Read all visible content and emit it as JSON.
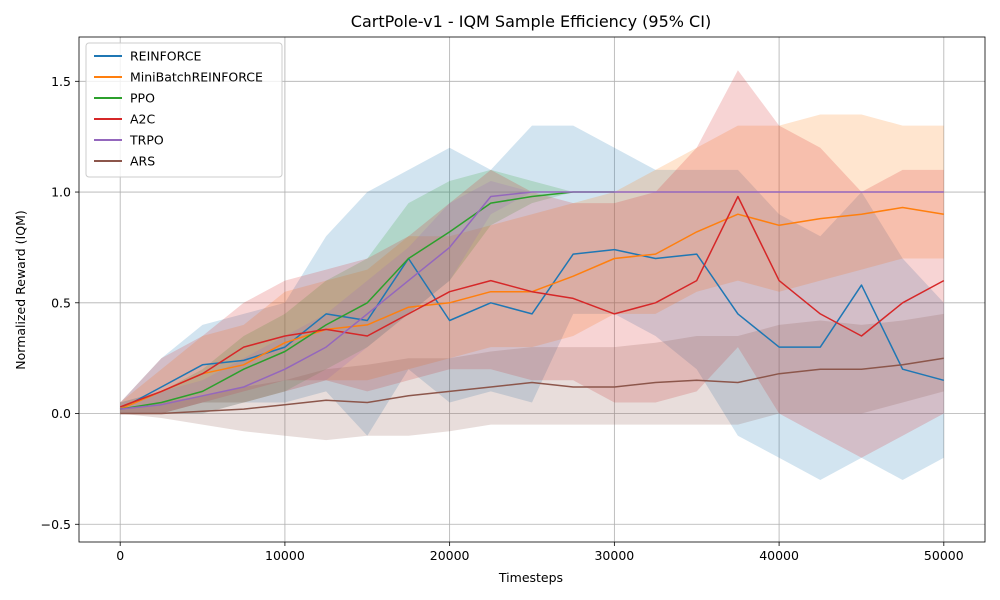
{
  "chart_data": {
    "type": "line",
    "title": "CartPole-v1 - IQM Sample Efficiency (95% CI)",
    "xlabel": "Timesteps",
    "ylabel": "Normalized Reward (IQM)",
    "xlim": [
      -2500,
      52500
    ],
    "ylim": [
      -0.58,
      1.7
    ],
    "xticks": [
      0,
      10000,
      20000,
      30000,
      40000,
      50000
    ],
    "xtick_labels": [
      "0",
      "10000",
      "20000",
      "30000",
      "40000",
      "50000"
    ],
    "yticks": [
      -0.5,
      0.0,
      0.5,
      1.0,
      1.5
    ],
    "ytick_labels": [
      "−0.5",
      "0.0",
      "0.5",
      "1.0",
      "1.5"
    ],
    "grid": true,
    "legend_position": "top-left",
    "series": [
      {
        "name": "REINFORCE",
        "color": "#1f77b4",
        "x": [
          0,
          2500,
          5000,
          7500,
          10000,
          12500,
          15000,
          17500,
          20000,
          22500,
          25000,
          27500,
          30000,
          32500,
          35000,
          37500,
          40000,
          42500,
          45000,
          47500,
          50000
        ],
        "y": [
          0.02,
          0.12,
          0.22,
          0.24,
          0.3,
          0.45,
          0.42,
          0.7,
          0.42,
          0.5,
          0.45,
          0.72,
          0.74,
          0.7,
          0.72,
          0.45,
          0.3,
          0.3,
          0.58,
          0.2,
          0.15
        ],
        "ci_low": [
          0.0,
          0.0,
          0.05,
          0.05,
          0.05,
          0.1,
          -0.1,
          0.2,
          0.05,
          0.1,
          0.05,
          0.45,
          0.45,
          0.35,
          0.2,
          -0.1,
          -0.2,
          -0.3,
          -0.2,
          -0.3,
          -0.2
        ],
        "ci_high": [
          0.05,
          0.25,
          0.4,
          0.45,
          0.5,
          0.8,
          1.0,
          1.1,
          1.2,
          1.1,
          1.3,
          1.3,
          1.2,
          1.1,
          1.1,
          1.1,
          0.9,
          0.8,
          1.0,
          0.7,
          0.5
        ]
      },
      {
        "name": "MiniBatchREINFORCE",
        "color": "#ff7f0e",
        "x": [
          0,
          2500,
          5000,
          7500,
          10000,
          12500,
          15000,
          17500,
          20000,
          22500,
          25000,
          27500,
          30000,
          32500,
          35000,
          37500,
          40000,
          42500,
          45000,
          47500,
          50000
        ],
        "y": [
          0.02,
          0.1,
          0.18,
          0.22,
          0.32,
          0.38,
          0.4,
          0.48,
          0.5,
          0.55,
          0.55,
          0.62,
          0.7,
          0.72,
          0.82,
          0.9,
          0.85,
          0.88,
          0.9,
          0.93,
          0.9
        ],
        "ci_low": [
          0.0,
          0.0,
          0.05,
          0.05,
          0.1,
          0.15,
          0.15,
          0.2,
          0.25,
          0.3,
          0.3,
          0.35,
          0.45,
          0.45,
          0.55,
          0.6,
          0.55,
          0.6,
          0.65,
          0.7,
          0.7
        ],
        "ci_high": [
          0.05,
          0.2,
          0.35,
          0.4,
          0.55,
          0.6,
          0.65,
          0.8,
          0.8,
          0.85,
          0.9,
          0.95,
          1.0,
          1.1,
          1.2,
          1.3,
          1.3,
          1.35,
          1.35,
          1.3,
          1.3
        ]
      },
      {
        "name": "PPO",
        "color": "#2ca02c",
        "x": [
          0,
          2500,
          5000,
          7500,
          10000,
          12500,
          15000,
          17500,
          20000,
          22500,
          25000,
          27500,
          30000
        ],
        "y": [
          0.02,
          0.05,
          0.1,
          0.2,
          0.28,
          0.4,
          0.5,
          0.7,
          0.82,
          0.95,
          0.98,
          1.0,
          1.0
        ],
        "ci_low": [
          0.0,
          0.0,
          0.0,
          0.05,
          0.1,
          0.2,
          0.3,
          0.45,
          0.6,
          0.85,
          0.95,
          1.0,
          1.0
        ],
        "ci_high": [
          0.05,
          0.1,
          0.2,
          0.35,
          0.45,
          0.6,
          0.7,
          0.95,
          1.05,
          1.1,
          1.05,
          1.0,
          1.0
        ]
      },
      {
        "name": "A2C",
        "color": "#d62728",
        "x": [
          0,
          2500,
          5000,
          7500,
          10000,
          12500,
          15000,
          17500,
          20000,
          22500,
          25000,
          27500,
          30000,
          32500,
          35000,
          37500,
          40000,
          42500,
          45000,
          47500,
          50000
        ],
        "y": [
          0.03,
          0.1,
          0.18,
          0.3,
          0.35,
          0.38,
          0.35,
          0.45,
          0.55,
          0.6,
          0.55,
          0.52,
          0.45,
          0.5,
          0.6,
          0.98,
          0.6,
          0.45,
          0.35,
          0.5,
          0.6
        ],
        "ci_low": [
          0.0,
          0.0,
          0.05,
          0.1,
          0.15,
          0.15,
          0.1,
          0.15,
          0.2,
          0.2,
          0.15,
          0.15,
          0.05,
          0.05,
          0.1,
          0.3,
          0.0,
          -0.1,
          -0.2,
          -0.1,
          0.0
        ],
        "ci_high": [
          0.05,
          0.25,
          0.35,
          0.5,
          0.6,
          0.65,
          0.7,
          0.8,
          0.95,
          1.1,
          1.0,
          0.95,
          0.95,
          1.0,
          1.2,
          1.55,
          1.3,
          1.2,
          1.0,
          1.1,
          1.1
        ]
      },
      {
        "name": "TRPO",
        "color": "#9467bd",
        "x": [
          0,
          2500,
          5000,
          7500,
          10000,
          12500,
          15000,
          17500,
          20000,
          22500,
          25000,
          27500,
          30000,
          32500,
          35000,
          37500,
          40000,
          42500,
          45000,
          47500,
          50000
        ],
        "y": [
          0.02,
          0.04,
          0.08,
          0.12,
          0.2,
          0.3,
          0.45,
          0.6,
          0.75,
          0.98,
          1.0,
          1.0,
          1.0,
          1.0,
          1.0,
          1.0,
          1.0,
          1.0,
          1.0,
          1.0,
          1.0
        ],
        "ci_low": [
          0.0,
          0.0,
          0.0,
          0.05,
          0.1,
          0.15,
          0.3,
          0.45,
          0.6,
          0.9,
          1.0,
          1.0,
          1.0,
          1.0,
          1.0,
          1.0,
          1.0,
          1.0,
          1.0,
          1.0,
          1.0
        ],
        "ci_high": [
          0.05,
          0.1,
          0.15,
          0.25,
          0.35,
          0.45,
          0.6,
          0.75,
          0.95,
          1.05,
          1.0,
          1.0,
          1.0,
          1.0,
          1.0,
          1.0,
          1.0,
          1.0,
          1.0,
          1.0,
          1.0
        ]
      },
      {
        "name": "ARS",
        "color": "#8c564b",
        "x": [
          0,
          2500,
          5000,
          7500,
          10000,
          12500,
          15000,
          17500,
          20000,
          22500,
          25000,
          27500,
          30000,
          32500,
          35000,
          37500,
          40000,
          42500,
          45000,
          47500,
          50000
        ],
        "y": [
          0.0,
          0.0,
          0.01,
          0.02,
          0.04,
          0.06,
          0.05,
          0.08,
          0.1,
          0.12,
          0.14,
          0.12,
          0.12,
          0.14,
          0.15,
          0.14,
          0.18,
          0.2,
          0.2,
          0.22,
          0.25
        ],
        "ci_low": [
          0.0,
          -0.02,
          -0.05,
          -0.08,
          -0.1,
          -0.12,
          -0.1,
          -0.1,
          -0.08,
          -0.05,
          -0.05,
          -0.05,
          -0.05,
          -0.05,
          -0.05,
          -0.05,
          0.0,
          0.0,
          0.0,
          0.05,
          0.1
        ],
        "ci_high": [
          0.02,
          0.05,
          0.08,
          0.12,
          0.15,
          0.2,
          0.22,
          0.25,
          0.25,
          0.28,
          0.3,
          0.3,
          0.3,
          0.32,
          0.35,
          0.35,
          0.4,
          0.42,
          0.4,
          0.42,
          0.45
        ]
      }
    ]
  }
}
